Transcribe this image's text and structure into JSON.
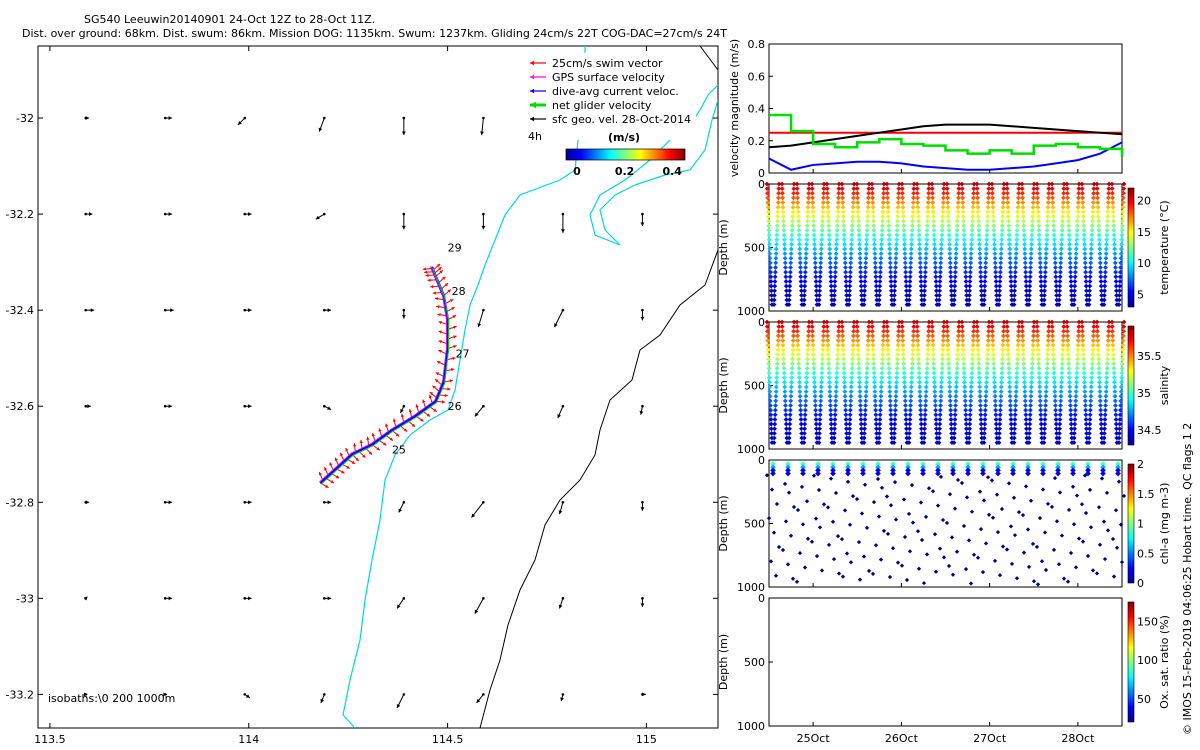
{
  "header": {
    "line1": "SG540 Leeuwin20140901 24-Oct 12Z to 28-Oct 11Z.",
    "line2": "Dist. over ground: 68km. Dist. swum: 86km. Mission DOG: 1135km. Swum: 1237km. Gliding 24cm/s 22T COG-DAC=27cm/s 24T"
  },
  "footer_note": "© IMOS 15-Feb-2019 04:06:25 Hobart time. QC flags 1 2",
  "colors": {
    "swim_vector": "#ff0000",
    "gps_surface": "#ff00ff",
    "dive_avg": "#0000ff",
    "net_glider": "#00dd00",
    "sfc_geo": "#000000",
    "coastline_200m": "#00d8e0",
    "isobath_1000m": "#000000"
  },
  "chart_data": [
    {
      "type": "map",
      "id": "track_map",
      "xticks": [
        "113.5",
        "114",
        "114.5",
        "115"
      ],
      "yticks": [
        "-32",
        "-32.2",
        "-32.4",
        "-32.6",
        "-32.8",
        "-33",
        "-33.2"
      ],
      "xlim": [
        113.47,
        115.18
      ],
      "ylim": [
        -33.27,
        -31.85
      ],
      "legend": {
        "placement": "top-right",
        "entries": [
          "25cm/s swim vector",
          "GPS surface velocity",
          "dive-avg current veloc.",
          "net glider velocity",
          "sfc geo. vel. 28-Oct-2014"
        ],
        "extra": "4h"
      },
      "colorbar": {
        "label": "(m/s)",
        "ticks": [
          "0",
          "0.2",
          "0.4"
        ]
      },
      "isobaths_label": "isobaths:\\0   200  1000m",
      "day_labels": [
        {
          "text": "25",
          "lon": 114.35,
          "lat": -32.69
        },
        {
          "text": "26",
          "lon": 114.49,
          "lat": -32.6
        },
        {
          "text": "27",
          "lon": 114.51,
          "lat": -32.49
        },
        {
          "text": "28",
          "lon": 114.5,
          "lat": -32.36
        },
        {
          "text": "29",
          "lon": 114.49,
          "lat": -32.27
        }
      ],
      "track": [
        {
          "lon": 114.18,
          "lat": -32.76
        },
        {
          "lon": 114.22,
          "lat": -32.73
        },
        {
          "lon": 114.26,
          "lat": -32.7
        },
        {
          "lon": 114.31,
          "lat": -32.68
        },
        {
          "lon": 114.36,
          "lat": -32.65
        },
        {
          "lon": 114.42,
          "lat": -32.62
        },
        {
          "lon": 114.47,
          "lat": -32.59
        },
        {
          "lon": 114.49,
          "lat": -32.55
        },
        {
          "lon": 114.5,
          "lat": -32.48
        },
        {
          "lon": 114.5,
          "lat": -32.42
        },
        {
          "lon": 114.49,
          "lat": -32.37
        },
        {
          "lon": 114.47,
          "lat": -32.33
        },
        {
          "lon": 114.46,
          "lat": -32.31
        }
      ],
      "geo_vectors": {
        "lons": [
          113.59,
          113.79,
          113.99,
          114.19,
          114.39,
          114.59,
          114.79,
          114.99
        ],
        "lats": [
          -32.0,
          -32.2,
          -32.4,
          -32.6,
          -32.8,
          -33.0,
          -33.2
        ],
        "u_v_by_row": [
          [
            [
              0.02,
              0.0
            ],
            [
              0.04,
              0.0
            ],
            [
              -0.04,
              -0.04
            ],
            [
              -0.03,
              -0.08
            ],
            [
              0.0,
              -0.1
            ],
            [
              -0.01,
              -0.1
            ],
            [
              0.0,
              -0.12
            ],
            [
              0.0,
              -0.1
            ]
          ],
          [
            [
              0.04,
              0.0
            ],
            [
              0.04,
              0.0
            ],
            [
              0.04,
              0.0
            ],
            [
              -0.05,
              -0.03
            ],
            [
              0.0,
              -0.09
            ],
            [
              0.0,
              -0.09
            ],
            [
              0.0,
              -0.11
            ],
            [
              0.0,
              -0.07
            ]
          ],
          [
            [
              0.05,
              0.0
            ],
            [
              0.05,
              0.0
            ],
            [
              0.04,
              0.0
            ],
            [
              0.04,
              0.0
            ],
            [
              0.0,
              -0.05
            ],
            [
              -0.03,
              -0.1
            ],
            [
              -0.05,
              -0.1
            ],
            [
              0.0,
              -0.06
            ]
          ],
          [
            [
              0.03,
              0.0
            ],
            [
              0.04,
              0.0
            ],
            [
              0.04,
              0.0
            ],
            [
              0.04,
              -0.02
            ],
            [
              -0.02,
              -0.04
            ],
            [
              -0.05,
              -0.06
            ],
            [
              -0.03,
              -0.07
            ],
            [
              -0.01,
              -0.05
            ]
          ],
          [
            [
              0.02,
              0.0
            ],
            [
              0.04,
              0.0
            ],
            [
              0.04,
              0.0
            ],
            [
              0.04,
              0.0
            ],
            [
              -0.03,
              -0.06
            ],
            [
              -0.07,
              -0.09
            ],
            [
              -0.02,
              -0.07
            ],
            [
              0.0,
              -0.05
            ]
          ],
          [
            [
              0.01,
              0.01
            ],
            [
              0.04,
              0.0
            ],
            [
              0.04,
              0.0
            ],
            [
              0.04,
              0.0
            ],
            [
              -0.04,
              -0.06
            ],
            [
              -0.05,
              -0.09
            ],
            [
              -0.02,
              -0.06
            ],
            [
              0.0,
              -0.05
            ]
          ],
          [
            [
              0.01,
              0.0
            ],
            [
              0.01,
              0.0
            ],
            [
              0.03,
              -0.02
            ],
            [
              -0.02,
              -0.05
            ],
            [
              -0.04,
              -0.08
            ],
            [
              -0.04,
              -0.05
            ],
            [
              -0.01,
              -0.04
            ],
            [
              0.02,
              0.0
            ]
          ]
        ]
      }
    },
    {
      "type": "line",
      "id": "velocity_panel",
      "ylabel": "velocity magnitude (m/s)",
      "yticks": [
        "0",
        "0.2",
        "0.4",
        "0.6",
        "0.8"
      ],
      "ylim": [
        0,
        0.8
      ],
      "x": [
        24.5,
        24.75,
        25.0,
        25.25,
        25.5,
        25.75,
        26.0,
        26.25,
        26.5,
        26.75,
        27.0,
        27.25,
        27.5,
        27.75,
        28.0,
        28.25,
        28.5
      ],
      "series": [
        {
          "name": "25cm/s swim vector",
          "color": "#ff0000",
          "values": [
            0.25,
            0.25,
            0.25,
            0.25,
            0.25,
            0.25,
            0.25,
            0.25,
            0.25,
            0.25,
            0.25,
            0.25,
            0.25,
            0.25,
            0.25,
            0.25,
            0.25
          ]
        },
        {
          "name": "sfc geo. vel. 28-Oct-2014",
          "color": "#000000",
          "values": [
            0.16,
            0.17,
            0.19,
            0.21,
            0.23,
            0.25,
            0.27,
            0.29,
            0.3,
            0.3,
            0.3,
            0.29,
            0.28,
            0.27,
            0.26,
            0.25,
            0.24
          ]
        },
        {
          "name": "dive-avg current veloc.",
          "color": "#0000ff",
          "values": [
            0.09,
            0.02,
            0.05,
            0.06,
            0.07,
            0.07,
            0.06,
            0.04,
            0.03,
            0.02,
            0.02,
            0.03,
            0.04,
            0.06,
            0.08,
            0.12,
            0.19
          ]
        },
        {
          "name": "net glider velocity",
          "color": "#00dd00",
          "values": [
            0.36,
            0.26,
            0.18,
            0.16,
            0.19,
            0.21,
            0.18,
            0.17,
            0.14,
            0.12,
            0.14,
            0.12,
            0.17,
            0.18,
            0.16,
            0.15,
            0.1
          ]
        }
      ]
    },
    {
      "type": "scatter",
      "id": "temperature_panel",
      "ylabel": "Depth (m)",
      "yticks": [
        "0",
        "500",
        "1000"
      ],
      "ylim": [
        1000,
        0
      ],
      "colorbar": {
        "label": "temperature (°C)",
        "ticks": [
          "5",
          "10",
          "15",
          "20"
        ],
        "range": [
          3,
          22
        ]
      },
      "dives": 24,
      "surface_value": 21,
      "deep_value": 4
    },
    {
      "type": "scatter",
      "id": "salinity_panel",
      "ylabel": "Depth (m)",
      "yticks": [
        "0",
        "500",
        "1000"
      ],
      "ylim": [
        1000,
        0
      ],
      "colorbar": {
        "label": "salinity",
        "ticks": [
          "34.5",
          "35",
          "35.5"
        ],
        "range": [
          34.3,
          35.9
        ]
      },
      "dives": 24,
      "surface_value": 35.8,
      "deep_value": 34.4
    },
    {
      "type": "scatter",
      "id": "chla_panel",
      "ylabel": "Depth (m)",
      "yticks": [
        "0",
        "500",
        "1000"
      ],
      "ylim": [
        1000,
        0
      ],
      "colorbar": {
        "label": "chl-a (mg m-3)",
        "ticks": [
          "0",
          "0.5",
          "1",
          "1.5",
          "2"
        ],
        "range": [
          0,
          2
        ]
      },
      "dives": 24
    },
    {
      "type": "scatter",
      "id": "oxygen_panel",
      "ylabel": "Depth (m)",
      "yticks": [
        "0",
        "500",
        "1000"
      ],
      "ylim": [
        1000,
        0
      ],
      "colorbar": {
        "label": "Ox. sat. ratio (%)",
        "ticks": [
          "50",
          "100",
          "150"
        ],
        "range": [
          20,
          175
        ]
      },
      "xticks": [
        "25Oct",
        "26Oct",
        "27Oct",
        "28Oct"
      ],
      "xtick_values": [
        25.0,
        26.0,
        27.0,
        28.0
      ],
      "xlim": [
        24.5,
        28.5
      ]
    }
  ]
}
